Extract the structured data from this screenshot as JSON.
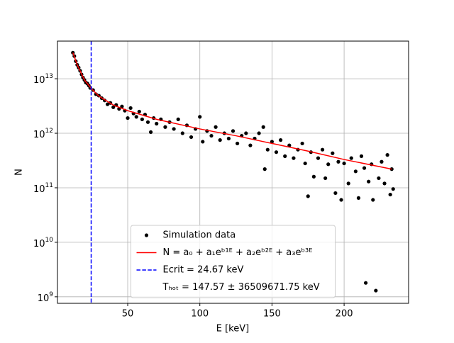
{
  "chart_data": {
    "type": "scatter",
    "xlabel": "E [keV]",
    "ylabel": "N",
    "log_y": true,
    "grid": true,
    "legend": "lower center",
    "xlim": [
      1.3,
      244.7
    ],
    "ylim": [
      760000000.0,
      49000000000000.0
    ],
    "xticks": [
      50,
      100,
      150,
      200
    ],
    "yticks": [
      {
        "value": 1000000000.0,
        "label": "10",
        "exponent": "9"
      },
      {
        "value": 10000000000.0,
        "label": "10",
        "exponent": "10"
      },
      {
        "value": 100000000000.0,
        "label": "10",
        "exponent": "11"
      },
      {
        "value": 1000000000000.0,
        "label": "10",
        "exponent": "12"
      },
      {
        "value": 10000000000000.0,
        "label": "10",
        "exponent": "13"
      }
    ],
    "series": [
      {
        "name": "Simulation data",
        "kind": "scatter",
        "color": "#000000",
        "x": [
          12,
          13,
          14,
          15,
          16,
          17,
          18,
          19,
          20,
          21,
          22,
          23,
          24,
          26,
          28,
          30,
          32,
          34,
          36,
          38,
          40,
          42,
          44,
          46,
          48,
          50,
          52,
          54,
          56,
          58,
          60,
          62,
          64,
          66,
          68,
          70,
          73,
          76,
          79,
          82,
          85,
          88,
          91,
          94,
          97,
          100,
          102,
          105,
          108,
          111,
          114,
          117,
          120,
          123,
          126,
          129,
          132,
          135,
          138,
          141,
          144,
          145,
          147,
          150,
          153,
          156,
          159,
          162,
          165,
          168,
          171,
          173,
          175,
          177,
          179,
          182,
          185,
          187,
          189,
          192,
          194,
          196,
          198,
          200,
          203,
          205,
          208,
          210,
          212,
          214,
          215,
          217,
          219,
          220,
          222,
          224,
          226,
          228,
          230,
          232,
          233,
          234
        ],
        "values": [
          30000000000000.0,
          26000000000000.0,
          21000000000000.0,
          18000000000000.0,
          16000000000000.0,
          14000000000000.0,
          12000000000000.0,
          10500000000000.0,
          9500000000000.0,
          8500000000000.0,
          8200000000000.0,
          7500000000000.0,
          6800000000000.0,
          6200000000000.0,
          5200000000000.0,
          4900000000000.0,
          4400000000000.0,
          4000000000000.0,
          3400000000000.0,
          3600000000000.0,
          3000000000000.0,
          3300000000000.0,
          2800000000000.0,
          3100000000000.0,
          2600000000000.0,
          1900000000000.0,
          2900000000000.0,
          2300000000000.0,
          2000000000000.0,
          2500000000000.0,
          1800000000000.0,
          2200000000000.0,
          1600000000000.0,
          1050000000000.0,
          1900000000000.0,
          1500000000000.0,
          1800000000000.0,
          1300000000000.0,
          1600000000000.0,
          1200000000000.0,
          1800000000000.0,
          1000000000000.0,
          1400000000000.0,
          850000000000.0,
          1200000000000.0,
          2000000000000.0,
          700000000000.0,
          1100000000000.0,
          900000000000.0,
          1300000000000.0,
          750000000000.0,
          1000000000000.0,
          800000000000.0,
          1100000000000.0,
          650000000000.0,
          900000000000.0,
          1000000000000.0,
          600000000000.0,
          800000000000.0,
          1000000000000.0,
          1300000000000.0,
          220000000000.0,
          500000000000.0,
          700000000000.0,
          450000000000.0,
          750000000000.0,
          380000000000.0,
          600000000000.0,
          350000000000.0,
          500000000000.0,
          650000000000.0,
          280000000000.0,
          70000000000.0,
          450000000000.0,
          160000000000.0,
          350000000000.0,
          500000000000.0,
          150000000000.0,
          270000000000.0,
          430000000000.0,
          80000000000.0,
          300000000000.0,
          60000000000.0,
          280000000000.0,
          120000000000.0,
          350000000000.0,
          200000000000.0,
          65000000000.0,
          380000000000.0,
          230000000000.0,
          1800000000.0,
          130000000000.0,
          270000000000.0,
          60000000000.0,
          1300000000.0,
          150000000000.0,
          300000000000.0,
          120000000000.0,
          400000000000.0,
          75000000000.0,
          220000000000.0,
          95000000000.0
        ]
      },
      {
        "name": "N = a₀ + a₁eᵇ¹ᴱ + a₂eᵇ²ᴱ + a₃eᵇ³ᴱ",
        "kind": "line",
        "color": "#ff0000",
        "x": [
          12,
          15,
          20,
          25,
          30,
          40,
          50,
          70,
          100,
          125,
          150,
          175,
          200,
          233
        ],
        "values": [
          30000000000000.0,
          18000000000000.0,
          9500000000000.0,
          6500000000000.0,
          4800000000000.0,
          3300000000000.0,
          2600000000000.0,
          1800000000000.0,
          1200000000000.0,
          900000000000.0,
          650000000000.0,
          470000000000.0,
          330000000000.0,
          220000000000.0
        ]
      },
      {
        "name": "Ecrit = 24.67 keV",
        "kind": "vline",
        "color": "#0000ff",
        "x": 24.67
      },
      {
        "name": "Tₕₒₜ = 147.57 ± 36509671.75 keV",
        "kind": "label"
      }
    ]
  }
}
